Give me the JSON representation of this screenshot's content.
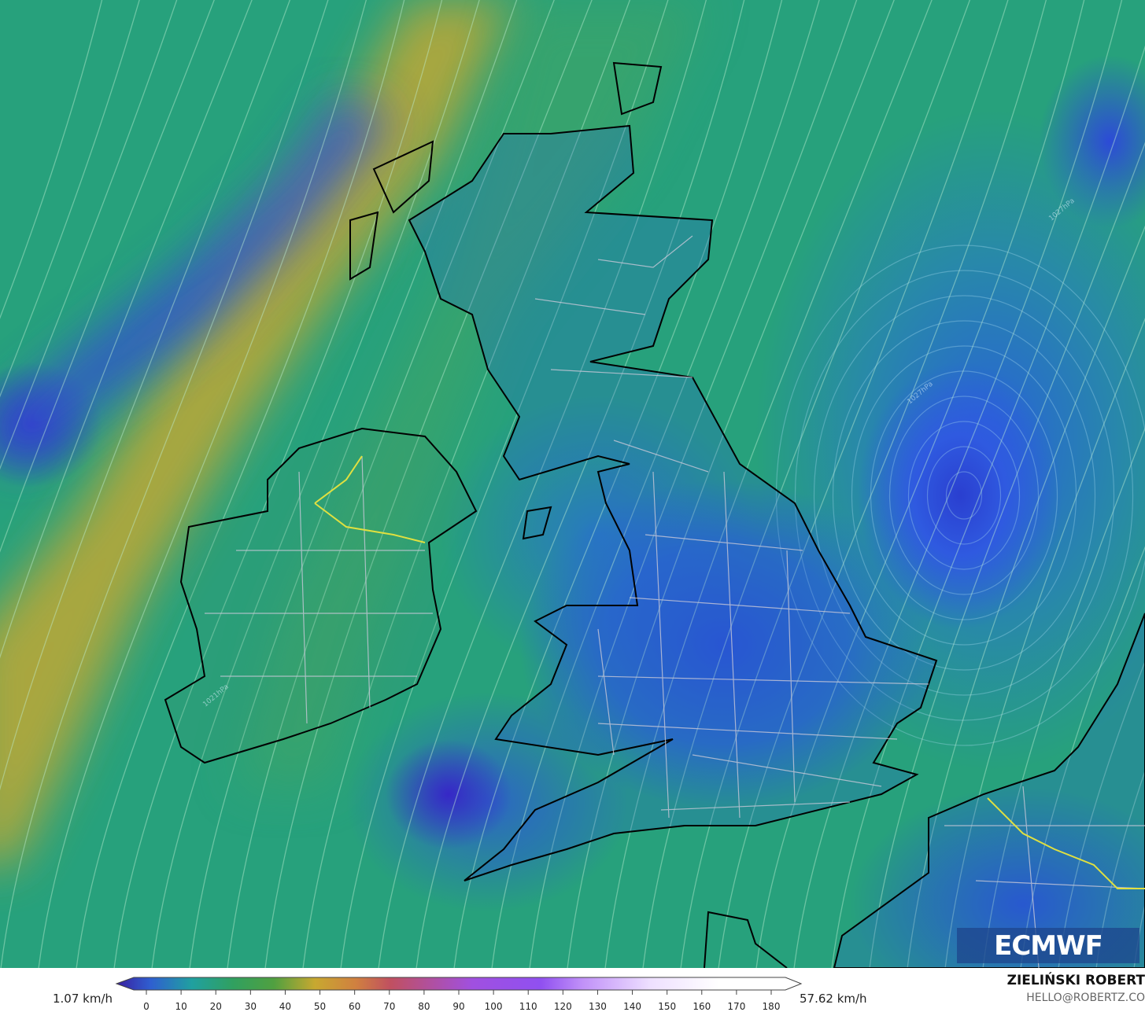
{
  "map": {
    "variable_unit": "km/h",
    "pressure_labels": [
      "1027hPa",
      "1027hPa",
      "1021hPa"
    ],
    "logo_text": "ECMWF",
    "colors": {
      "sea_base": "#27a17c",
      "jet_band": "#c8a830",
      "low_wind": "#2a3fd0",
      "coast": "#000000",
      "borders": "#c8c8d0",
      "national_border": "#e0e040"
    }
  },
  "legend": {
    "min_label": "1.07 km/h",
    "max_label": "57.62 km/h",
    "ticks": [
      "0",
      "10",
      "20",
      "30",
      "40",
      "50",
      "60",
      "70",
      "80",
      "90",
      "100",
      "110",
      "120",
      "130",
      "140",
      "150",
      "160",
      "170",
      "180"
    ]
  },
  "credits": {
    "author": "ZIELIŃSKI ROBERT",
    "email": "HELLO@ROBERTZ.CO"
  }
}
